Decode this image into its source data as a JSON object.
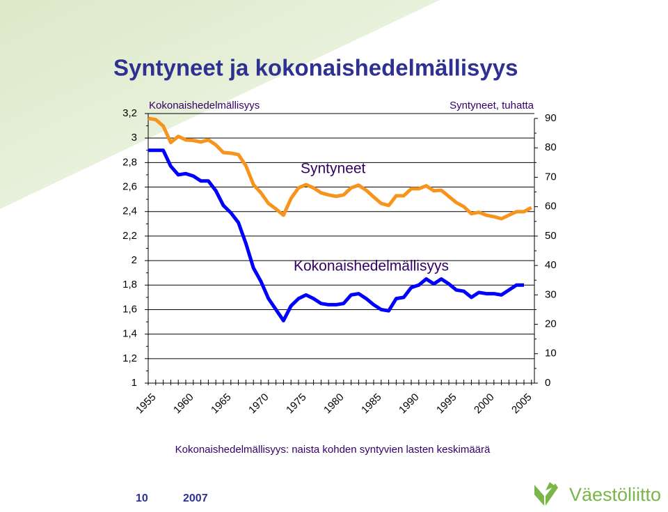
{
  "chart_data": {
    "type": "line",
    "title": "Syntyneet ja kokonaishedelmällisyys",
    "y_label": "Kokonaishedelmällisyys",
    "y2_label": "Syntyneet, tuhatta",
    "note": "Kokonaishedelmällisyys: naista kohden syntyvien lasten keskimäärä",
    "categories": [
      1955,
      null,
      null,
      null,
      null,
      1960,
      null,
      null,
      null,
      null,
      1965,
      null,
      null,
      null,
      null,
      1970,
      null,
      null,
      null,
      null,
      1975,
      null,
      null,
      null,
      null,
      1980,
      null,
      null,
      null,
      null,
      1985,
      null,
      null,
      null,
      null,
      1990,
      null,
      null,
      null,
      null,
      1995,
      null,
      null,
      null,
      null,
      2000,
      null,
      null,
      null,
      null,
      2005,
      null
    ],
    "series": [
      {
        "name": "Kokonaishedelmällisyys",
        "color": "#0000ff",
        "axis": "y",
        "values": [
          2.9,
          2.9,
          2.9,
          2.77,
          2.7,
          2.71,
          2.69,
          2.65,
          2.65,
          2.57,
          2.45,
          2.39,
          2.31,
          2.14,
          1.94,
          1.83,
          1.69,
          1.6,
          1.51,
          1.63,
          1.69,
          1.72,
          1.69,
          1.65,
          1.64,
          1.64,
          1.65,
          1.72,
          1.73,
          1.69,
          1.64,
          1.6,
          1.59,
          1.69,
          1.7,
          1.78,
          1.8,
          1.85,
          1.81,
          1.85,
          1.81,
          1.76,
          1.75,
          1.7,
          1.74,
          1.73,
          1.73,
          1.72,
          1.76,
          1.8,
          1.8,
          null
        ]
      },
      {
        "name": "Syntyneet",
        "color": "#f7941d",
        "axis": "y2",
        "values": [
          90,
          89.6,
          87.4,
          81.8,
          83.9,
          82.7,
          82.5,
          82,
          82.7,
          81,
          78.4,
          78.2,
          77.7,
          73.9,
          67.5,
          64.7,
          61.1,
          59.2,
          57.1,
          62.8,
          66.4,
          67.5,
          66.4,
          64.7,
          64,
          63.5,
          64,
          66.4,
          67.3,
          65.6,
          63.3,
          61.1,
          60.4,
          63.7,
          63.7,
          66.1,
          66.1,
          67.1,
          65.4,
          65.6,
          63.5,
          61.4,
          60,
          57.6,
          58.1,
          57.1,
          56.6,
          55.9,
          57.1,
          58.3,
          58.3,
          59.7
        ]
      }
    ],
    "ylim": [
      1,
      3.2
    ],
    "yticks": [
      1,
      {
        "value": 1.2,
        "label": "1,2"
      },
      {
        "value": 1.4,
        "label": "1,4"
      },
      {
        "value": 1.6,
        "label": "1,6"
      },
      {
        "value": 1.8,
        "label": "1,8"
      },
      2,
      {
        "value": 2.2,
        "label": "2,2"
      },
      {
        "value": 2.4,
        "label": "2,4"
      },
      {
        "value": 2.6,
        "label": "2,6"
      },
      {
        "value": 2.8,
        "label": "2,8"
      },
      3,
      {
        "value": 3.2,
        "label": "3,2"
      }
    ],
    "y2lim": [
      0,
      90
    ],
    "y2ticks": [
      0,
      10,
      20,
      30,
      40,
      50,
      60,
      70,
      80,
      90
    ],
    "grid": true
  },
  "footer": {
    "page": "10",
    "year": "2007",
    "logo": "Väestöliitto"
  }
}
